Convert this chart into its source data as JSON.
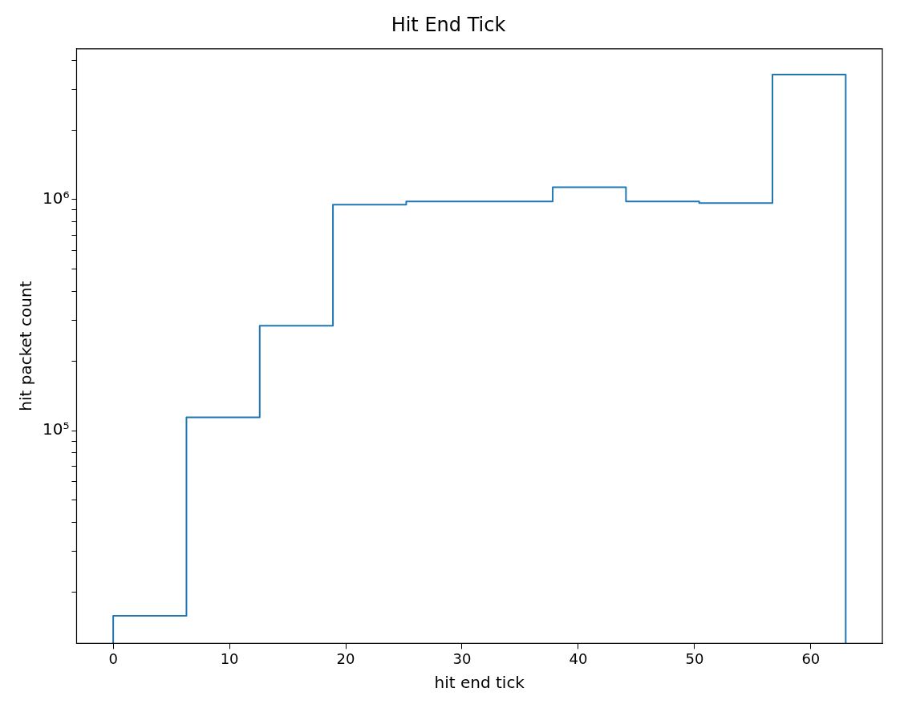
{
  "chart_data": {
    "type": "histogram",
    "title": "Hit End Tick",
    "xlabel": "hit end tick",
    "ylabel": "hit packet count",
    "bins": [
      0,
      6.3,
      12.6,
      18.9,
      25.2,
      31.5,
      37.8,
      44.1,
      50.4,
      56.7,
      63
    ],
    "values": [
      15800,
      114000,
      284000,
      950000,
      980000,
      980000,
      1130000,
      980000,
      965000,
      3470000
    ],
    "color": "#1f77b4",
    "log": "y",
    "xlim": [
      -3.15,
      66.15
    ],
    "ylim": [
      12000,
      4490000
    ],
    "xticks": [
      0,
      10,
      20,
      30,
      40,
      50,
      60
    ],
    "yticks": [
      {
        "value": 20000,
        "label": null
      },
      {
        "value": 30000,
        "label": null
      },
      {
        "value": 40000,
        "label": null
      },
      {
        "value": 50000,
        "label": null
      },
      {
        "value": 60000,
        "label": null
      },
      {
        "value": 70000,
        "label": null
      },
      {
        "value": 80000,
        "label": null
      },
      {
        "value": 90000,
        "label": null
      },
      {
        "value": 100000,
        "label": "10⁵"
      },
      {
        "value": 200000,
        "label": null
      },
      {
        "value": 300000,
        "label": null
      },
      {
        "value": 400000,
        "label": null
      },
      {
        "value": 500000,
        "label": null
      },
      {
        "value": 600000,
        "label": null
      },
      {
        "value": 700000,
        "label": null
      },
      {
        "value": 800000,
        "label": null
      },
      {
        "value": 900000,
        "label": null
      },
      {
        "value": 1000000,
        "label": "10⁶"
      },
      {
        "value": 2000000,
        "label": null
      },
      {
        "value": 3000000,
        "label": null
      },
      {
        "value": 4000000,
        "label": null
      }
    ],
    "grid": false,
    "legend": false
  }
}
